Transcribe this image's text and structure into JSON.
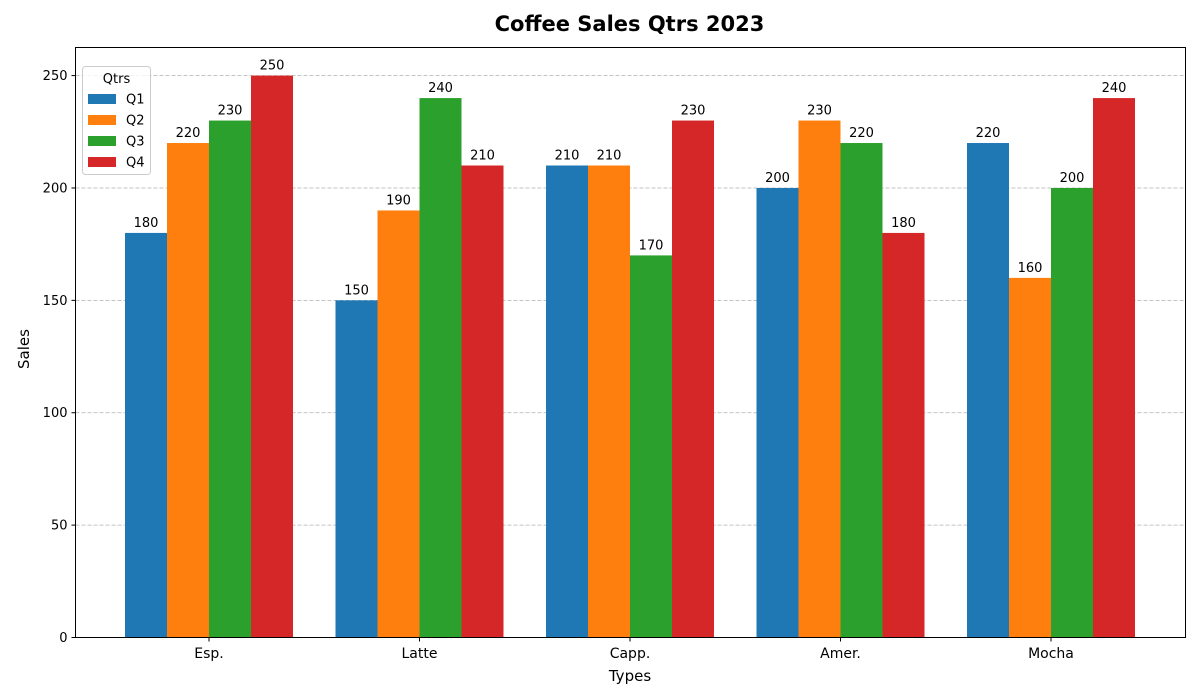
{
  "chart_data": {
    "type": "bar",
    "title": "Coffee Sales Qtrs 2023",
    "xlabel": "Types",
    "ylabel": "Sales",
    "categories": [
      "Esp.",
      "Latte",
      "Capp.",
      "Amer.",
      "Mocha"
    ],
    "series": [
      {
        "name": "Q1",
        "color": "#1f77b4",
        "values": [
          180,
          150,
          210,
          200,
          220
        ]
      },
      {
        "name": "Q2",
        "color": "#ff7f0e",
        "values": [
          220,
          190,
          210,
          230,
          160
        ]
      },
      {
        "name": "Q3",
        "color": "#2ca02c",
        "values": [
          230,
          240,
          170,
          220,
          200
        ]
      },
      {
        "name": "Q4",
        "color": "#d62728",
        "values": [
          250,
          210,
          230,
          180,
          240
        ]
      }
    ],
    "ylim": [
      0,
      262.5
    ],
    "yticks": [
      0,
      50,
      100,
      150,
      200,
      250
    ],
    "grid": "y-dashed",
    "legend": {
      "title": "Qtrs",
      "placement": "top-left"
    }
  }
}
